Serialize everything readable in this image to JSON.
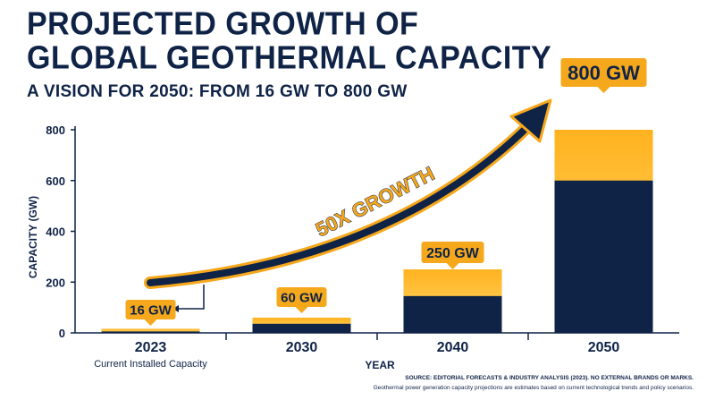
{
  "title_lines": [
    "PROJECTED GROWTH OF",
    "GLOBAL GEOTHERMAL CAPACITY"
  ],
  "subtitle": "A VISION FOR 2050: FROM 16 GW TO 800 GW",
  "growth_label": "50X GROWTH",
  "source": "SOURCE: EDITORIAL FORECASTS & INDUSTRY ANALYSIS (2023). NO EXTERNAL BRANDS OR MARKS.",
  "note": "Geothermal power generation capacity projections are estimates based on current technological trends and policy scenarios.",
  "colors": {
    "navy": "#0f2347",
    "gold": "#f6a81c",
    "gold_light": "#ffc84a"
  },
  "chart_data": {
    "type": "bar",
    "xlabel": "YEAR",
    "ylabel": "CAPACITY (GW)",
    "ylim": [
      0,
      800
    ],
    "yticks": [
      0,
      200,
      400,
      600,
      800
    ],
    "grid": false,
    "categories": [
      "2023",
      "2030",
      "2040",
      "2050"
    ],
    "category_sublabels": [
      "Current Installed Capacity",
      "",
      "",
      ""
    ],
    "values": [
      16,
      60,
      250,
      800
    ],
    "value_labels": [
      "16 GW",
      "60 GW",
      "250 GW",
      "800 GW"
    ]
  }
}
